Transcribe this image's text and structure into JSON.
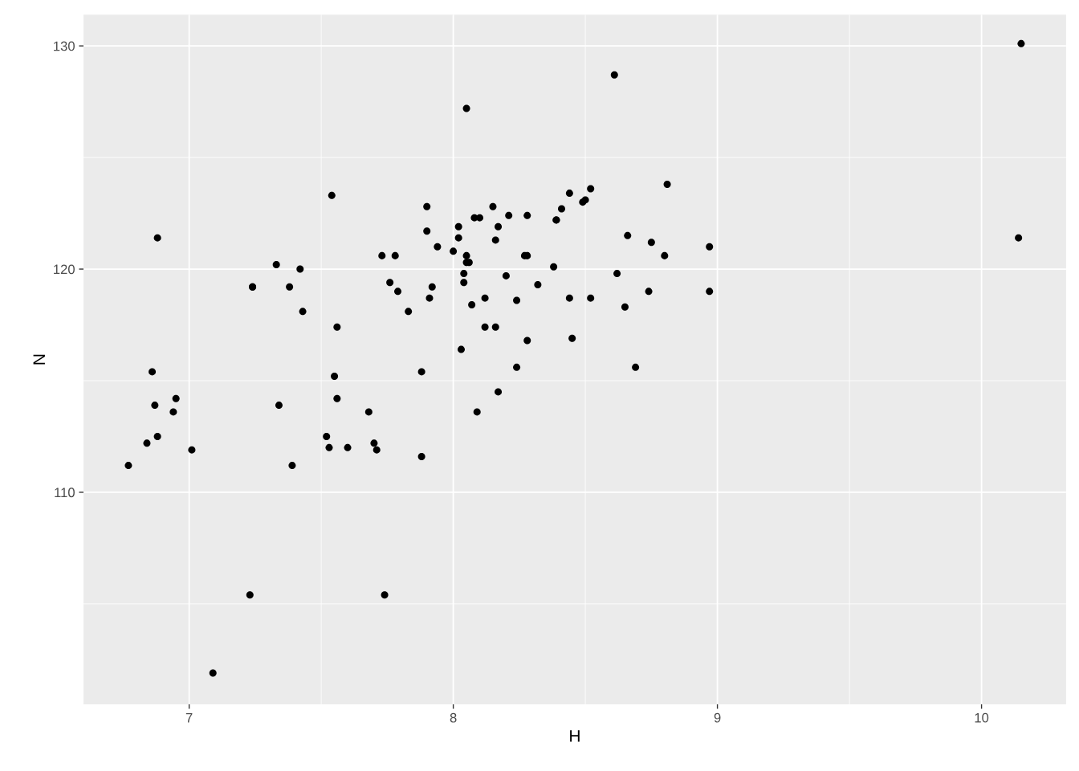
{
  "chart_data": {
    "type": "scatter",
    "xlabel": "H",
    "ylabel": "N",
    "x": [
      6.77,
      6.84,
      6.88,
      6.87,
      6.86,
      6.88,
      6.94,
      6.95,
      7.01,
      7.09,
      7.23,
      7.24,
      7.24,
      7.33,
      7.34,
      7.38,
      7.39,
      7.42,
      7.43,
      7.52,
      7.53,
      7.54,
      7.55,
      7.56,
      7.56,
      7.6,
      7.68,
      7.7,
      7.71,
      7.73,
      7.74,
      7.76,
      7.78,
      7.79,
      7.83,
      7.88,
      7.88,
      7.9,
      7.9,
      7.91,
      7.92,
      7.94,
      8.0,
      8.02,
      8.02,
      8.03,
      8.04,
      8.04,
      8.05,
      8.05,
      8.05,
      8.06,
      8.07,
      8.08,
      8.09,
      8.1,
      8.12,
      8.12,
      8.15,
      8.16,
      8.16,
      8.17,
      8.17,
      8.2,
      8.21,
      8.24,
      8.24,
      8.27,
      8.28,
      8.28,
      8.28,
      8.32,
      8.38,
      8.39,
      8.39,
      8.41,
      8.44,
      8.44,
      8.45,
      8.49,
      8.5,
      8.52,
      8.52,
      8.61,
      8.62,
      8.65,
      8.66,
      8.69,
      8.74,
      8.75,
      8.8,
      8.81,
      8.97,
      8.97,
      10.15,
      10.14
    ],
    "series": [
      {
        "color": "#000000",
        "values": [
          111.2,
          112.2,
          112.5,
          113.9,
          115.4,
          121.4,
          113.6,
          114.2,
          111.9,
          101.9,
          105.4,
          119.2,
          119.2,
          120.2,
          113.9,
          119.2,
          111.2,
          120.0,
          118.1,
          112.5,
          112.0,
          123.3,
          115.2,
          117.4,
          114.2,
          112.0,
          113.6,
          112.2,
          111.9,
          120.6,
          105.4,
          119.4,
          120.6,
          119.0,
          118.1,
          115.4,
          111.6,
          122.8,
          121.7,
          118.7,
          119.2,
          121.0,
          120.8,
          121.9,
          121.4,
          116.4,
          119.8,
          119.4,
          120.6,
          127.2,
          120.3,
          120.3,
          118.4,
          122.3,
          113.6,
          122.3,
          118.7,
          117.4,
          122.8,
          121.3,
          117.4,
          121.9,
          114.5,
          119.7,
          122.4,
          118.6,
          115.6,
          120.6,
          120.6,
          116.8,
          122.4,
          119.3,
          120.1,
          122.2,
          122.2,
          122.7,
          118.7,
          123.4,
          116.9,
          123.0,
          123.1,
          118.7,
          123.6,
          128.7,
          119.8,
          118.3,
          121.5,
          115.6,
          119.0,
          121.2,
          120.6,
          123.8,
          121.0,
          119.0,
          130.1,
          121.4
        ]
      }
    ],
    "xlim": [
      6.6,
      10.32
    ],
    "ylim": [
      100.5,
      131.4
    ],
    "xticks": [
      7,
      8,
      9,
      10
    ],
    "yticks": [
      110,
      120,
      130
    ],
    "grid": true,
    "marker": "circle"
  }
}
